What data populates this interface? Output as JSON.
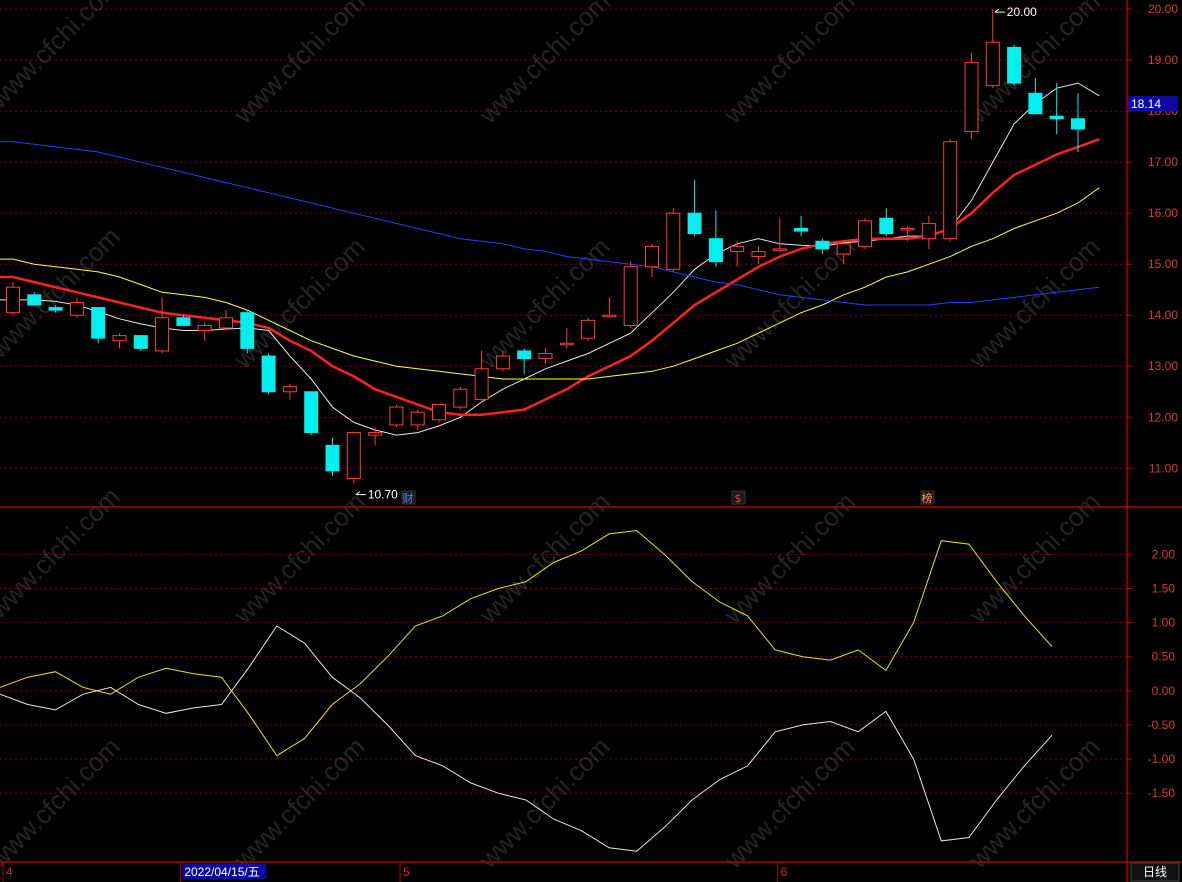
{
  "chart_data": [
    {
      "type": "candlestick",
      "title": "",
      "ylim": [
        10.3,
        20.1
      ],
      "y_ticks": [
        "20.00",
        "19.00",
        "18.00",
        "17.00",
        "16.00",
        "15.00",
        "14.00",
        "13.00",
        "12.00",
        "11.00"
      ],
      "grid": true,
      "current_price": "18.14",
      "annotations": [
        {
          "text": "20.00",
          "marks": "high"
        },
        {
          "text": "10.70",
          "marks": "low"
        }
      ],
      "event_markers": [
        {
          "text": "财",
          "color": "#4f86ff"
        },
        {
          "text": "$",
          "color": "#ff3b3b"
        },
        {
          "text": "榜",
          "color": "#ff9b5a"
        }
      ],
      "candles": [
        {
          "o": 14.05,
          "h": 14.65,
          "l": 14.0,
          "c": 14.55
        },
        {
          "o": 14.4,
          "h": 14.45,
          "l": 14.2,
          "c": 14.2
        },
        {
          "o": 14.15,
          "h": 14.2,
          "l": 14.05,
          "c": 14.1
        },
        {
          "o": 14.0,
          "h": 14.35,
          "l": 13.95,
          "c": 14.25
        },
        {
          "o": 14.15,
          "h": 14.15,
          "l": 13.45,
          "c": 13.55
        },
        {
          "o": 13.5,
          "h": 13.65,
          "l": 13.35,
          "c": 13.6
        },
        {
          "o": 13.6,
          "h": 13.6,
          "l": 13.3,
          "c": 13.35
        },
        {
          "o": 13.3,
          "h": 14.35,
          "l": 13.25,
          "c": 13.95
        },
        {
          "o": 13.95,
          "h": 14.0,
          "l": 13.8,
          "c": 13.8
        },
        {
          "o": 13.7,
          "h": 13.85,
          "l": 13.5,
          "c": 13.8
        },
        {
          "o": 13.75,
          "h": 14.1,
          "l": 13.7,
          "c": 13.95
        },
        {
          "o": 14.05,
          "h": 14.1,
          "l": 13.25,
          "c": 13.35
        },
        {
          "o": 13.2,
          "h": 13.25,
          "l": 12.45,
          "c": 12.5
        },
        {
          "o": 12.5,
          "h": 12.65,
          "l": 12.35,
          "c": 12.6
        },
        {
          "o": 12.5,
          "h": 12.5,
          "l": 11.65,
          "c": 11.7
        },
        {
          "o": 11.45,
          "h": 11.6,
          "l": 10.85,
          "c": 10.95
        },
        {
          "o": 10.8,
          "h": 11.7,
          "l": 10.7,
          "c": 11.7
        },
        {
          "o": 11.65,
          "h": 11.8,
          "l": 11.45,
          "c": 11.7
        },
        {
          "o": 11.85,
          "h": 12.25,
          "l": 11.8,
          "c": 12.2
        },
        {
          "o": 11.85,
          "h": 12.15,
          "l": 11.75,
          "c": 12.1
        },
        {
          "o": 11.95,
          "h": 12.25,
          "l": 11.9,
          "c": 12.25
        },
        {
          "o": 12.2,
          "h": 12.6,
          "l": 12.15,
          "c": 12.55
        },
        {
          "o": 12.35,
          "h": 13.3,
          "l": 12.3,
          "c": 12.95
        },
        {
          "o": 12.95,
          "h": 13.3,
          "l": 12.9,
          "c": 13.2
        },
        {
          "o": 13.3,
          "h": 13.35,
          "l": 12.85,
          "c": 13.15
        },
        {
          "o": 13.15,
          "h": 13.35,
          "l": 13.05,
          "c": 13.25
        },
        {
          "o": 13.45,
          "h": 13.75,
          "l": 13.35,
          "c": 13.45
        },
        {
          "o": 13.55,
          "h": 13.95,
          "l": 13.5,
          "c": 13.9
        },
        {
          "o": 14.0,
          "h": 14.35,
          "l": 13.95,
          "c": 14.0
        },
        {
          "o": 13.8,
          "h": 15.05,
          "l": 13.75,
          "c": 14.95
        },
        {
          "o": 14.95,
          "h": 15.4,
          "l": 14.75,
          "c": 15.35
        },
        {
          "o": 14.9,
          "h": 16.1,
          "l": 14.85,
          "c": 16.0
        },
        {
          "o": 16.0,
          "h": 16.65,
          "l": 15.55,
          "c": 15.6
        },
        {
          "o": 15.5,
          "h": 16.05,
          "l": 14.95,
          "c": 15.05
        },
        {
          "o": 15.25,
          "h": 15.45,
          "l": 14.95,
          "c": 15.35
        },
        {
          "o": 15.15,
          "h": 15.35,
          "l": 15.0,
          "c": 15.25
        },
        {
          "o": 15.3,
          "h": 15.9,
          "l": 15.25,
          "c": 15.3
        },
        {
          "o": 15.7,
          "h": 15.95,
          "l": 15.55,
          "c": 15.65
        },
        {
          "o": 15.45,
          "h": 15.5,
          "l": 15.2,
          "c": 15.3
        },
        {
          "o": 15.2,
          "h": 15.4,
          "l": 15.0,
          "c": 15.4
        },
        {
          "o": 15.35,
          "h": 15.9,
          "l": 15.3,
          "c": 15.85
        },
        {
          "o": 15.9,
          "h": 16.1,
          "l": 15.55,
          "c": 15.6
        },
        {
          "o": 15.7,
          "h": 15.75,
          "l": 15.45,
          "c": 15.7
        },
        {
          "o": 15.5,
          "h": 15.95,
          "l": 15.3,
          "c": 15.8
        },
        {
          "o": 15.5,
          "h": 17.45,
          "l": 15.45,
          "c": 17.4
        },
        {
          "o": 17.6,
          "h": 19.15,
          "l": 17.45,
          "c": 18.95
        },
        {
          "o": 18.5,
          "h": 20.0,
          "l": 18.45,
          "c": 19.35
        },
        {
          "o": 19.25,
          "h": 19.3,
          "l": 18.5,
          "c": 18.55
        },
        {
          "o": 18.35,
          "h": 18.65,
          "l": 17.95,
          "c": 17.95
        },
        {
          "o": 17.9,
          "h": 18.55,
          "l": 17.55,
          "c": 17.85
        },
        {
          "o": 17.85,
          "h": 18.35,
          "l": 17.2,
          "c": 17.65
        }
      ],
      "ma_lines": [
        {
          "color": "#e6e6e6",
          "values": [
            14.3,
            14.3,
            14.27,
            14.2,
            14.07,
            13.93,
            13.83,
            13.75,
            13.7,
            13.7,
            13.73,
            13.75,
            13.7,
            13.2,
            12.75,
            12.2,
            11.9,
            11.75,
            11.65,
            11.7,
            11.83,
            12.0,
            12.3,
            12.55,
            12.75,
            12.95,
            13.1,
            13.25,
            13.45,
            13.65,
            14.05,
            14.45,
            14.9,
            15.2,
            15.4,
            15.5,
            15.4,
            15.37,
            15.35,
            15.42,
            15.45,
            15.5,
            15.55,
            15.55,
            15.7,
            16.25,
            17.0,
            17.75,
            18.15,
            18.45,
            18.55,
            18.3
          ]
        },
        {
          "color": "#ff2020",
          "values": [
            14.75,
            14.65,
            14.55,
            14.45,
            14.35,
            14.25,
            14.15,
            14.05,
            14.0,
            13.95,
            13.9,
            13.85,
            13.75,
            13.5,
            13.3,
            13.0,
            12.8,
            12.55,
            12.4,
            12.25,
            12.1,
            12.05,
            12.05,
            12.1,
            12.15,
            12.35,
            12.55,
            12.8,
            13.0,
            13.2,
            13.5,
            13.85,
            14.2,
            14.45,
            14.7,
            14.95,
            15.15,
            15.3,
            15.4,
            15.45,
            15.5,
            15.5,
            15.5,
            15.55,
            15.7,
            16.0,
            16.4,
            16.75,
            16.95,
            17.15,
            17.3,
            17.45
          ]
        },
        {
          "color": "#ffff30",
          "values": [
            15.1,
            15.0,
            14.95,
            14.9,
            14.85,
            14.75,
            14.6,
            14.45,
            14.4,
            14.35,
            14.25,
            14.1,
            13.9,
            13.7,
            13.5,
            13.35,
            13.2,
            13.1,
            13.0,
            12.95,
            12.9,
            12.85,
            12.8,
            12.75,
            12.75,
            12.75,
            12.75,
            12.75,
            12.8,
            12.85,
            12.9,
            13.0,
            13.15,
            13.3,
            13.45,
            13.65,
            13.85,
            14.05,
            14.2,
            14.4,
            14.55,
            14.75,
            14.85,
            15.0,
            15.15,
            15.35,
            15.5,
            15.7,
            15.85,
            16.0,
            16.2,
            16.5
          ]
        },
        {
          "color": "#2a3cff",
          "values": [
            17.4,
            17.35,
            17.3,
            17.25,
            17.2,
            17.1,
            17.0,
            16.9,
            16.8,
            16.7,
            16.6,
            16.5,
            16.4,
            16.3,
            16.2,
            16.1,
            16.0,
            15.9,
            15.8,
            15.7,
            15.6,
            15.5,
            15.45,
            15.4,
            15.3,
            15.25,
            15.15,
            15.1,
            15.05,
            15.0,
            14.95,
            14.85,
            14.75,
            14.65,
            14.6,
            14.5,
            14.4,
            14.35,
            14.3,
            14.25,
            14.2,
            14.2,
            14.2,
            14.2,
            14.25,
            14.25,
            14.3,
            14.35,
            14.4,
            14.45,
            14.5,
            14.55
          ]
        }
      ]
    },
    {
      "type": "line",
      "title": "",
      "ylim": [
        -2.45,
        2.65
      ],
      "y_ticks": [
        "2.00",
        "1.50",
        "1.00",
        "0.50",
        "0.00",
        "-0.50",
        "-1.00",
        "-1.50"
      ],
      "grid": true,
      "series": [
        {
          "color": "#e6e600",
          "values": [
            0.05,
            0.2,
            0.28,
            0.05,
            -0.05,
            0.2,
            0.33,
            0.25,
            0.2,
            -0.35,
            -0.95,
            -0.7,
            -0.2,
            0.1,
            0.5,
            0.95,
            1.1,
            1.35,
            1.5,
            1.6,
            1.88,
            2.05,
            2.3,
            2.35,
            2.0,
            1.6,
            1.3,
            1.1,
            0.6,
            0.5,
            0.45,
            0.6,
            0.3,
            1.0,
            2.2,
            2.15,
            1.6,
            1.1,
            0.65
          ]
        },
        {
          "color": "#e6e6e6",
          "values": [
            -0.05,
            -0.2,
            -0.28,
            -0.05,
            0.05,
            -0.2,
            -0.33,
            -0.25,
            -0.2,
            0.35,
            0.95,
            0.7,
            0.2,
            -0.1,
            -0.5,
            -0.95,
            -1.1,
            -1.35,
            -1.5,
            -1.6,
            -1.88,
            -2.05,
            -2.3,
            -2.35,
            -2.0,
            -1.6,
            -1.3,
            -1.1,
            -0.6,
            -0.5,
            -0.45,
            -0.6,
            -0.3,
            -1.0,
            -2.2,
            -2.15,
            -1.6,
            -1.1,
            -0.65
          ]
        }
      ]
    }
  ],
  "x_axis": {
    "labels": [
      {
        "text": "4",
        "pos": 0.0
      },
      {
        "text": "2022/04/15/五",
        "pos": 0.16,
        "highlight": true
      },
      {
        "text": "5",
        "pos": 0.355
      },
      {
        "text": "6",
        "pos": 0.69
      }
    ],
    "period_button": "日线"
  },
  "watermark": "www.cfchi.com",
  "colors": {
    "background": "#000000",
    "frame": "#b00000",
    "grid": "#7a0000",
    "up": "#ff3b3b",
    "down": "#00f0f0"
  }
}
